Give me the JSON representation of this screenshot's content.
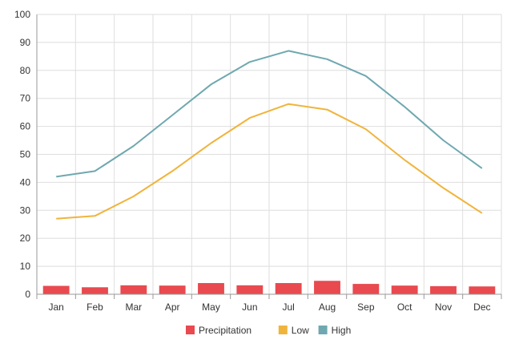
{
  "chart_data": {
    "type": "bar+line",
    "categories": [
      "Jan",
      "Feb",
      "Mar",
      "Apr",
      "May",
      "Jun",
      "Jul",
      "Aug",
      "Sep",
      "Oct",
      "Nov",
      "Dec"
    ],
    "series": [
      {
        "name": "Precipitation",
        "type": "bar",
        "color": "#e84a4f",
        "values": [
          3.0,
          2.5,
          3.2,
          3.1,
          4.0,
          3.2,
          4.0,
          4.8,
          3.7,
          3.1,
          2.9,
          2.8
        ]
      },
      {
        "name": "Low",
        "type": "line",
        "color": "#f0b43c",
        "values": [
          27,
          28,
          35,
          44,
          54,
          63,
          68,
          66,
          59,
          48,
          38,
          29
        ]
      },
      {
        "name": "High",
        "type": "line",
        "color": "#6fa8b0",
        "values": [
          42,
          44,
          53,
          64,
          75,
          83,
          87,
          84,
          78,
          67,
          55,
          45
        ]
      }
    ],
    "y_ticks": [
      "0",
      "10",
      "20",
      "30",
      "40",
      "50",
      "60",
      "70",
      "80",
      "90",
      "100"
    ],
    "ylim": [
      0,
      100
    ],
    "grid": true,
    "legend_position": "bottom-center",
    "title": "",
    "xlabel": "",
    "ylabel": ""
  }
}
